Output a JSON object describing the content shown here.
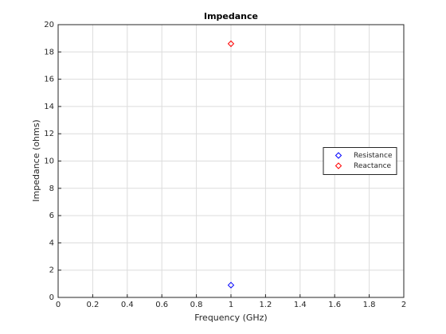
{
  "chart_data": {
    "type": "scatter",
    "title": "Impedance",
    "x_label": "Frequency (GHz)",
    "y_label": "Impedance (ohms)",
    "series": [
      {
        "name": "Resistance",
        "color": "#0000ff",
        "x": [
          1
        ],
        "values": [
          0.9
        ]
      },
      {
        "name": "Reactance",
        "color": "#ff0000",
        "x": [
          1
        ],
        "values": [
          18.6
        ]
      }
    ],
    "xlim": [
      0,
      2
    ],
    "xticks": [
      0,
      0.2,
      0.4,
      0.6,
      0.8,
      1,
      1.2,
      1.4,
      1.6,
      1.8,
      2
    ],
    "ylim": [
      0,
      20
    ],
    "yticks": [
      0,
      2,
      4,
      6,
      8,
      10,
      12,
      14,
      16,
      18,
      20
    ],
    "grid": true,
    "legend_location": "east"
  }
}
